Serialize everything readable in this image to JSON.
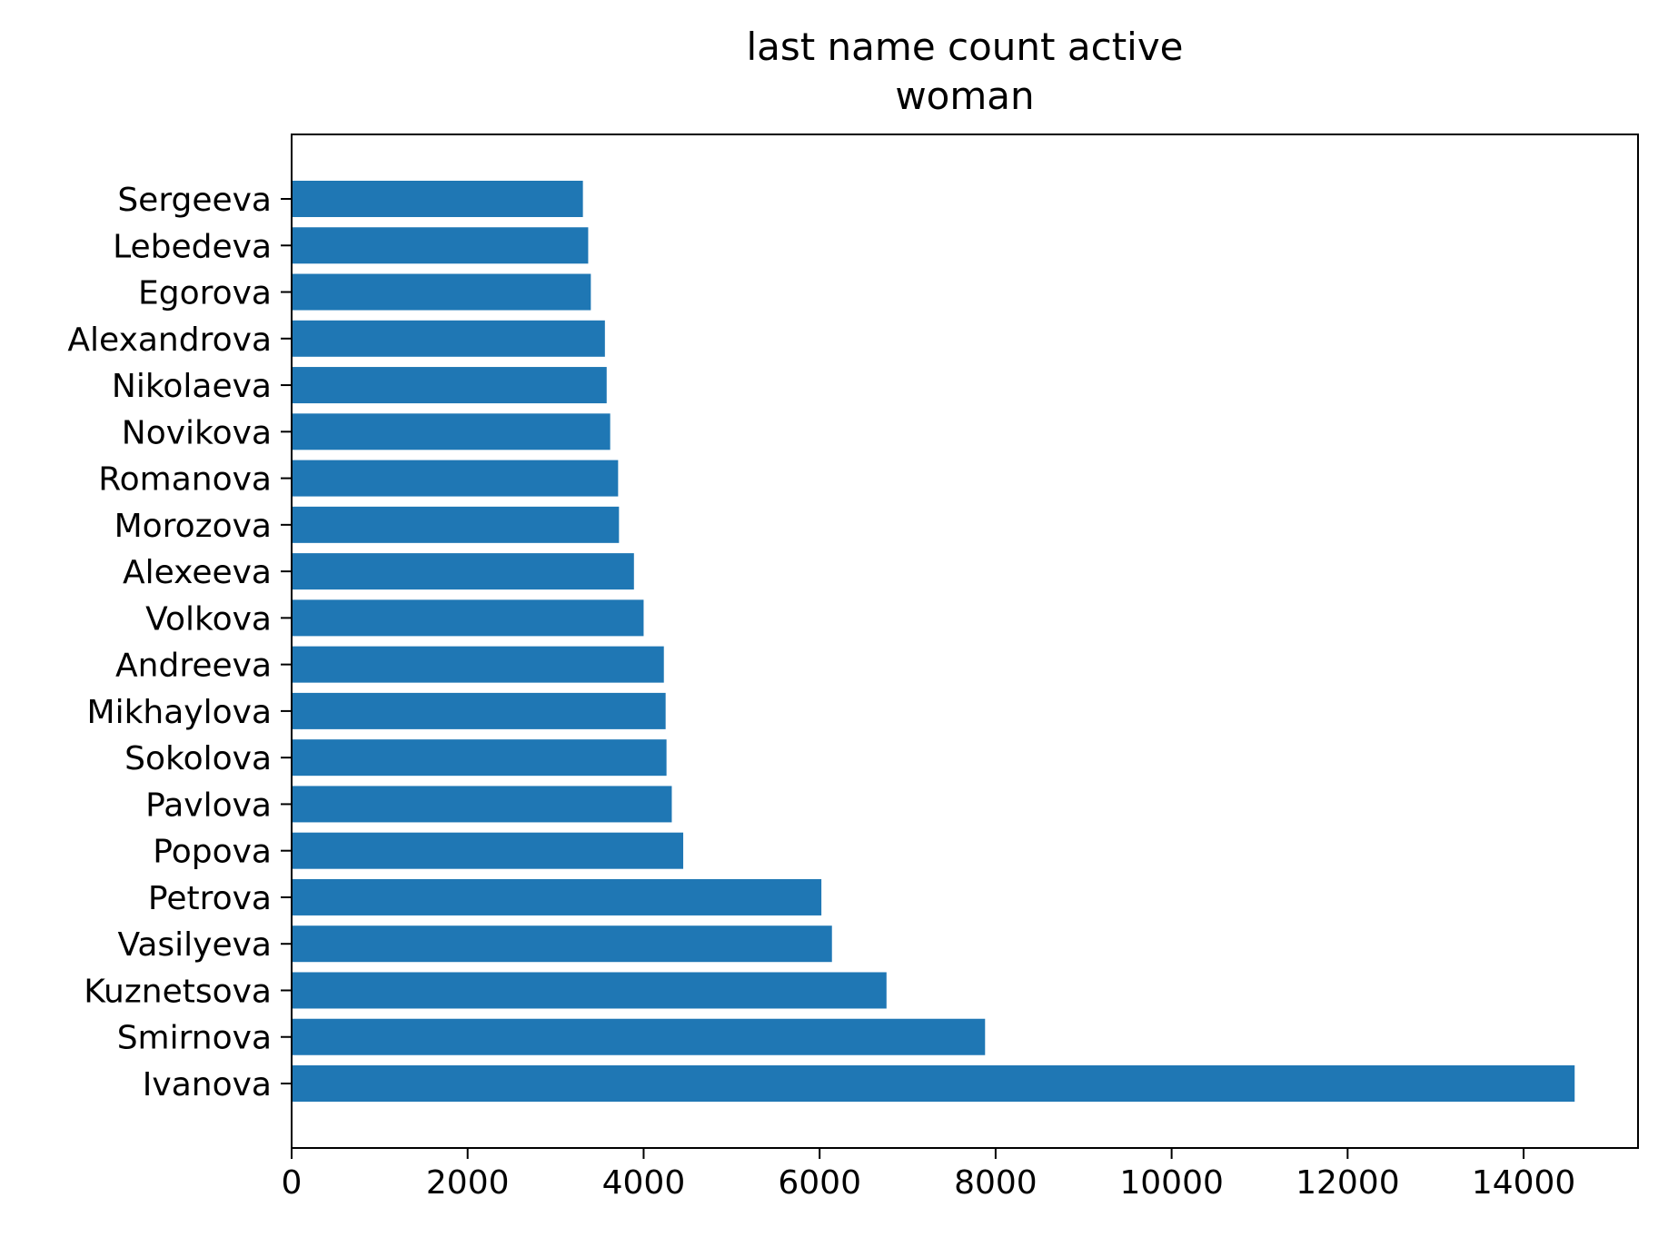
{
  "chart_data": {
    "type": "bar",
    "orientation": "horizontal",
    "title_lines": [
      "last name count active",
      "woman"
    ],
    "xlabel": "",
    "ylabel": "",
    "xlim": [
      0,
      15300
    ],
    "xticks": [
      0,
      2000,
      4000,
      6000,
      8000,
      10000,
      12000,
      14000
    ],
    "xtick_labels": [
      "0",
      "2000",
      "4000",
      "6000",
      "8000",
      "10000",
      "12000",
      "14000"
    ],
    "grid": false,
    "legend": "none",
    "bar_color": "#1f77b4",
    "categories": [
      "Ivanova",
      "Smirnova",
      "Kuznetsova",
      "Vasilyeva",
      "Petrova",
      "Popova",
      "Pavlova",
      "Sokolova",
      "Mikhaylova",
      "Andreeva",
      "Volkova",
      "Alexeeva",
      "Morozova",
      "Romanova",
      "Novikova",
      "Nikolaeva",
      "Alexandrova",
      "Egorova",
      "Lebedeva",
      "Sergeeva"
    ],
    "values": [
      14580,
      7880,
      6760,
      6140,
      6020,
      4450,
      4320,
      4260,
      4250,
      4230,
      4000,
      3890,
      3720,
      3710,
      3620,
      3580,
      3560,
      3400,
      3370,
      3310
    ]
  }
}
